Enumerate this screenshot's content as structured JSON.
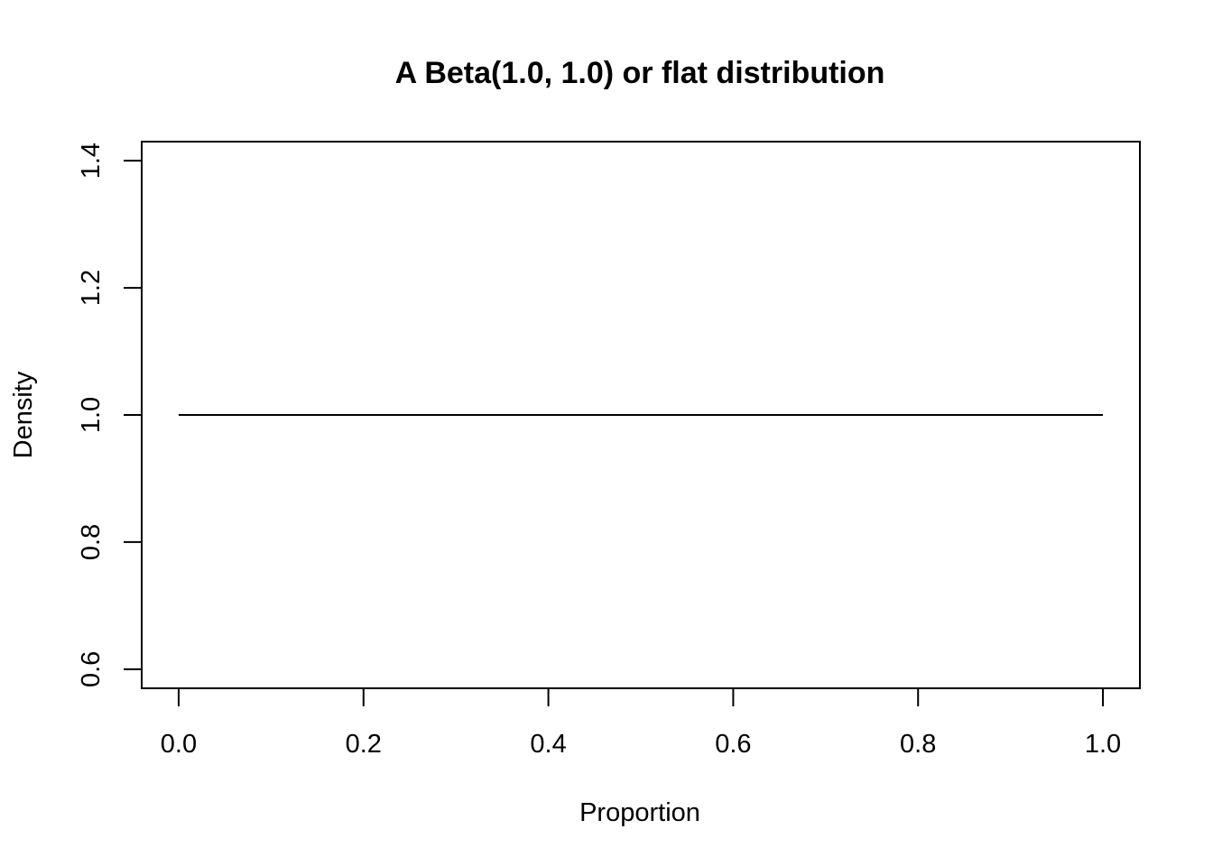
{
  "chart_data": {
    "type": "line",
    "title": "A Beta(1.0, 1.0) or flat distribution",
    "xlabel": "Proportion",
    "ylabel": "Density",
    "xlim": [
      -0.04,
      1.04
    ],
    "ylim": [
      0.57,
      1.43
    ],
    "x_ticks": [
      0.0,
      0.2,
      0.4,
      0.6,
      0.8,
      1.0
    ],
    "x_tick_labels": [
      "0.0",
      "0.2",
      "0.4",
      "0.6",
      "0.8",
      "1.0"
    ],
    "y_ticks": [
      0.6,
      0.8,
      1.0,
      1.2,
      1.4
    ],
    "y_tick_labels": [
      "0.6",
      "0.8",
      "1.0",
      "1.2",
      "1.4"
    ],
    "grid": false,
    "legend": "none",
    "series": [
      {
        "x": [
          0.0,
          0.1,
          0.2,
          0.3,
          0.4,
          0.5,
          0.6,
          0.7,
          0.8,
          0.9,
          1.0
        ],
        "y": [
          1.0,
          1.0,
          1.0,
          1.0,
          1.0,
          1.0,
          1.0,
          1.0,
          1.0,
          1.0,
          1.0
        ],
        "color": "#000000"
      }
    ]
  }
}
